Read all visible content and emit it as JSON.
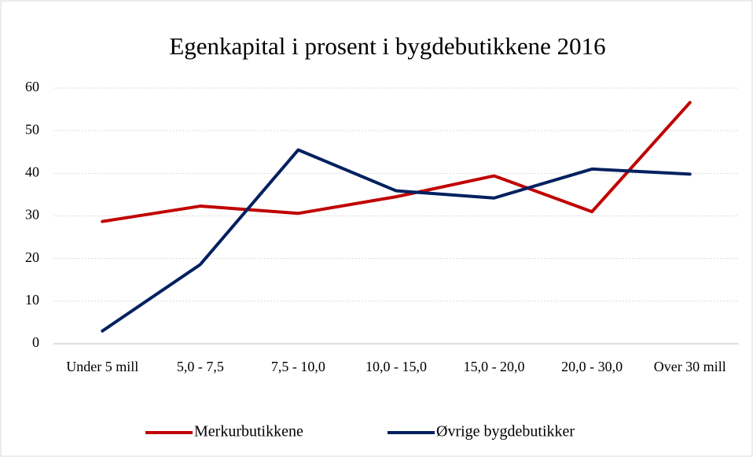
{
  "chart_data": {
    "type": "line",
    "title": "Egenkapital i prosent i bygdebutikkene 2016",
    "categories": [
      "Under 5 mill",
      "5,0 - 7,5",
      "7,5 - 10,0",
      "10,0 - 15,0",
      "15,0 - 20,0",
      "20,0 - 30,0",
      "Over 30 mill"
    ],
    "series": [
      {
        "name": "Merkurbutikkene",
        "color": "#c00000",
        "values": [
          28.7,
          32.3,
          30.6,
          34.5,
          39.4,
          31.0,
          56.6
        ]
      },
      {
        "name": "Øvrige bygdebutikker",
        "color": "#002060",
        "values": [
          3.0,
          18.6,
          45.5,
          35.9,
          34.2,
          41.0,
          39.8
        ]
      }
    ],
    "ylim": [
      0,
      60
    ],
    "yticks": [
      0,
      10,
      20,
      30,
      40,
      50,
      60
    ],
    "grid": true,
    "legend": "bottom"
  }
}
